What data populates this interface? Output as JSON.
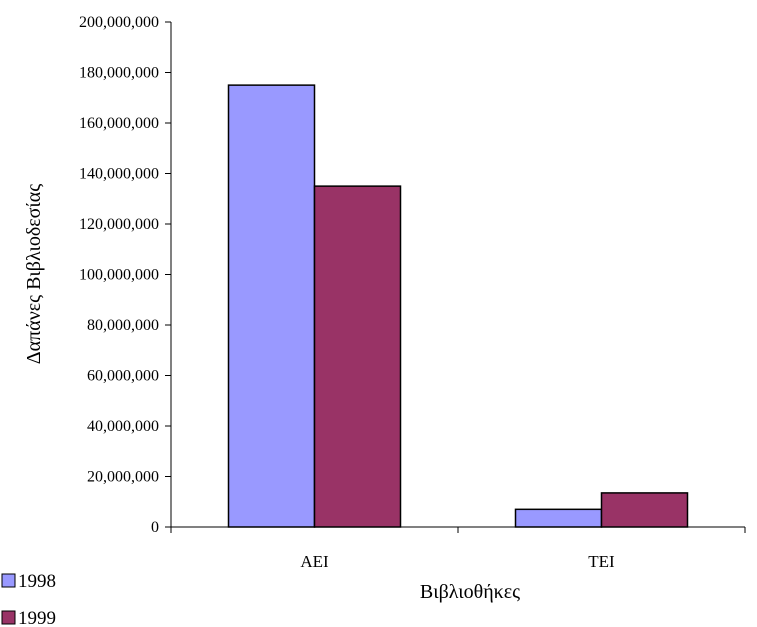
{
  "chart_data": {
    "type": "bar",
    "title": "",
    "xlabel": "Βιβλιοθήκες",
    "ylabel": "Δαπάνες Βιβλιοδεσίας",
    "categories": [
      "ΑΕΙ",
      "ΤΕΙ"
    ],
    "series": [
      {
        "name": "1998",
        "values": [
          175000000,
          7000000
        ],
        "color": "#9999ff"
      },
      {
        "name": "1999",
        "values": [
          135000000,
          13500000
        ],
        "color": "#993366"
      }
    ],
    "ylim": [
      0,
      200000000
    ],
    "yticks": [
      "0",
      "20,000,000",
      "40,000,000",
      "60,000,000",
      "80,000,000",
      "100,000,000",
      "120,000,000",
      "140,000,000",
      "160,000,000",
      "180,000,000",
      "200,000,000"
    ],
    "grid": false,
    "legend": "bottom-left"
  }
}
